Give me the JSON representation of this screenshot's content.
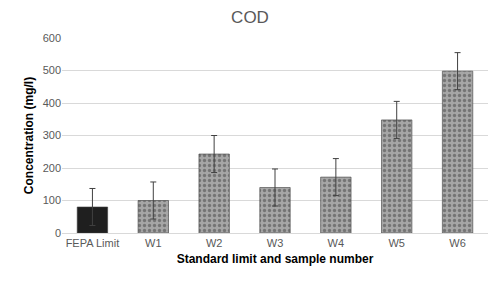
{
  "chart_data": {
    "type": "bar",
    "title": "COD",
    "x_label": "Standard limit and sample number",
    "y_label": "Concentration (mg/l)",
    "categories": [
      "FEPA Limit",
      "W1",
      "W2",
      "W3",
      "W4",
      "W5",
      "W6"
    ],
    "values": [
      80,
      100,
      243,
      140,
      172,
      348,
      498
    ],
    "errors": [
      57,
      57,
      57,
      57,
      57,
      57,
      57
    ],
    "colors": [
      "#1f1f1f",
      "#a6a6a6",
      "#a6a6a6",
      "#a6a6a6",
      "#a6a6a6",
      "#a6a6a6",
      "#a6a6a6"
    ],
    "ylim": [
      0,
      600
    ],
    "yticks": [
      0,
      100,
      200,
      300,
      400,
      500,
      600
    ],
    "grid": true
  }
}
